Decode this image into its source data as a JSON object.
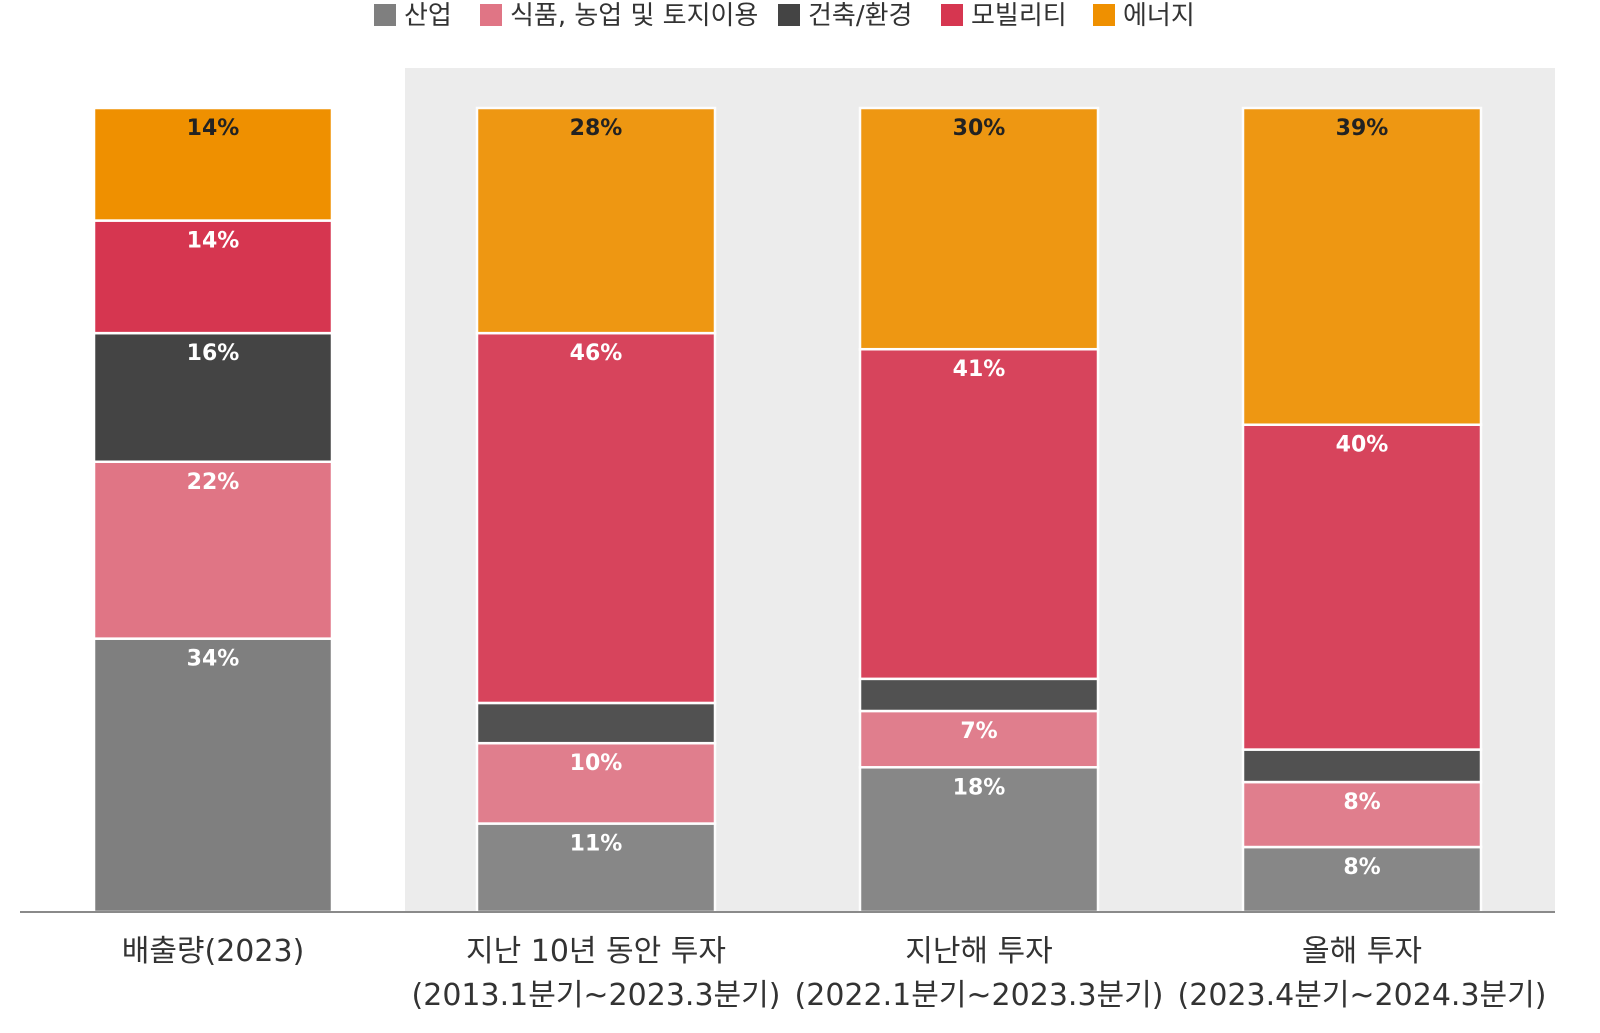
{
  "chart_data": {
    "type": "bar",
    "stacked": true,
    "normalized_percent": true,
    "categories": [
      [
        "배출량(2023)"
      ],
      [
        "지난 10년 동안 투자",
        "(2013.1분기~2023.3분기)"
      ],
      [
        "지난해 투자",
        "(2022.1분기~2023.3분기)"
      ],
      [
        "올해 투자",
        "(2023.4분기~2024.3분기)"
      ]
    ],
    "series": [
      {
        "name": "산업",
        "color": "#7f7f7f",
        "values": [
          34,
          11,
          18,
          8
        ],
        "labels": [
          "34%",
          "11%",
          "18%",
          "8%"
        ]
      },
      {
        "name": "식품, 농업 및 토지이용",
        "color": "#e07585",
        "values": [
          22,
          10,
          7,
          8
        ],
        "labels": [
          "22%",
          "10%",
          "7%",
          "8%"
        ]
      },
      {
        "name": "건축/환경",
        "color": "#444444",
        "values": [
          16,
          5,
          4,
          4
        ],
        "labels": [
          "16%",
          "",
          "",
          ""
        ]
      },
      {
        "name": "모빌리티",
        "color": "#d63650",
        "values": [
          14,
          46,
          41,
          40
        ],
        "labels": [
          "14%",
          "46%",
          "41%",
          "40%"
        ]
      },
      {
        "name": "에너지",
        "color": "#ef9000",
        "values": [
          14,
          28,
          30,
          39
        ],
        "labels": [
          "14%",
          "28%",
          "30%",
          "39%"
        ]
      }
    ],
    "highlight_categories": [
      1,
      2,
      3
    ],
    "legend_position": "top",
    "ylim": [
      0,
      100
    ],
    "grid": false
  }
}
